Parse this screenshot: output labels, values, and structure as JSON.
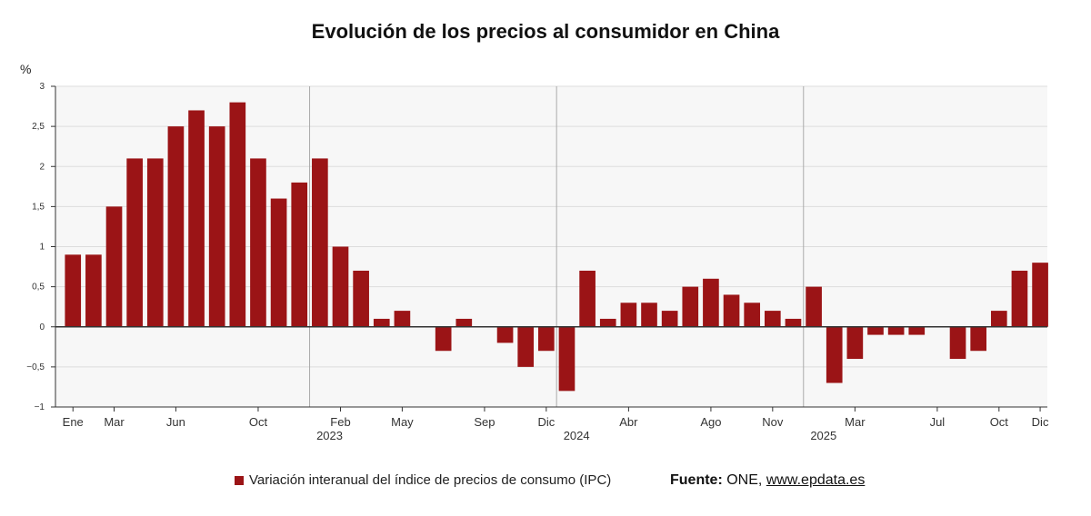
{
  "title": "Evolución de los precios al consumidor en China",
  "unit_label": "%",
  "legend_label": "Variación interanual del índice de precios de consumo (IPC)",
  "source": {
    "label": "Fuente:",
    "text": "ONE,",
    "link": "www.epdata.es"
  },
  "colors": {
    "bar": "#9b1416",
    "grid": "#dddddd",
    "plot_bg": "#f7f7f7",
    "separator": "#aaaaaa"
  },
  "chart_data": {
    "type": "bar",
    "ylim": [
      -1,
      3
    ],
    "yticks": [
      "−1",
      "−0,5",
      "0",
      "0,5",
      "1",
      "1,5",
      "2",
      "2,5",
      "3"
    ],
    "ytick_values": [
      -1,
      -0.5,
      0,
      0.5,
      1,
      1.5,
      2,
      2.5,
      3
    ],
    "grid": true,
    "legend_position": "bottom",
    "categories": [
      "Ene 2022",
      "Feb 2022",
      "Mar 2022",
      "Abr 2022",
      "May 2022",
      "Jun 2022",
      "Jul 2022",
      "Ago 2022",
      "Sep 2022",
      "Oct 2022",
      "Nov 2022",
      "Dic 2022",
      "Ene 2023",
      "Feb 2023",
      "Mar 2023",
      "Abr 2023",
      "May 2023",
      "Jun 2023",
      "Jul 2023",
      "Ago 2023",
      "Sep 2023",
      "Oct 2023",
      "Nov 2023",
      "Dic 2023",
      "Ene 2024",
      "Feb 2024",
      "Mar 2024",
      "Abr 2024",
      "May 2024",
      "Jun 2024",
      "Jul 2024",
      "Ago 2024",
      "Sep 2024",
      "Oct 2024",
      "Nov 2024",
      "Dic 2024",
      "Ene 2025",
      "Feb 2025",
      "Mar 2025",
      "Abr 2025",
      "May 2025",
      "Jun 2025",
      "Jul 2025",
      "Ago 2025",
      "Sep 2025",
      "Oct 2025",
      "Nov 2025",
      "Dic 2025"
    ],
    "values": [
      0.9,
      0.9,
      1.5,
      2.1,
      2.1,
      2.5,
      2.7,
      2.5,
      2.8,
      2.1,
      1.6,
      1.8,
      2.1,
      1.0,
      0.7,
      0.1,
      0.2,
      0.0,
      -0.3,
      0.1,
      0.0,
      -0.2,
      -0.5,
      -0.3,
      -0.8,
      0.7,
      0.1,
      0.3,
      0.3,
      0.2,
      0.5,
      0.6,
      0.4,
      0.3,
      0.2,
      0.1,
      0.5,
      -0.7,
      -0.4,
      -0.1,
      -0.1,
      -0.1,
      0.0,
      -0.4,
      -0.3,
      0.2,
      0.7,
      0.8
    ],
    "x_tick_labels": [
      {
        "index": 0,
        "label": "Ene"
      },
      {
        "index": 2,
        "label": "Mar"
      },
      {
        "index": 5,
        "label": "Jun"
      },
      {
        "index": 9,
        "label": "Oct"
      },
      {
        "index": 13,
        "label": "Feb"
      },
      {
        "index": 16,
        "label": "May"
      },
      {
        "index": 20,
        "label": "Sep"
      },
      {
        "index": 23,
        "label": "Dic"
      },
      {
        "index": 27,
        "label": "Abr"
      },
      {
        "index": 31,
        "label": "Ago"
      },
      {
        "index": 34,
        "label": "Nov"
      },
      {
        "index": 38,
        "label": "Mar"
      },
      {
        "index": 42,
        "label": "Jul"
      },
      {
        "index": 45,
        "label": "Oct"
      },
      {
        "index": 47,
        "label": "Dic"
      }
    ],
    "year_labels": [
      {
        "after_index": 11,
        "label": "2023"
      },
      {
        "after_index": 23,
        "label": "2024"
      },
      {
        "after_index": 35,
        "label": "2025"
      }
    ]
  }
}
